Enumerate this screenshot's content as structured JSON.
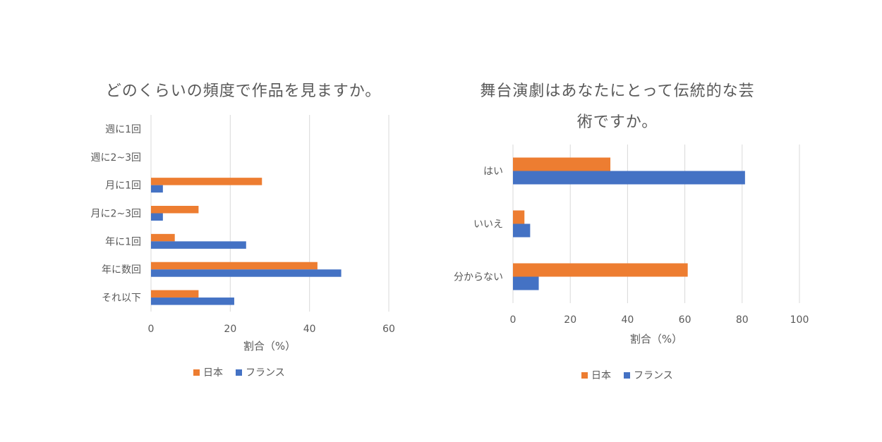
{
  "colors": {
    "japan": "#ED7D31",
    "france": "#4472C4",
    "grid": "#D9D9D9",
    "text": "#595959"
  },
  "chart_data": [
    {
      "type": "bar",
      "orientation": "horizontal",
      "title": "どのくらいの頻度で作品を見ますか。",
      "xlabel": "割合（%）",
      "xlim": [
        0,
        60
      ],
      "xticks": [
        0,
        20,
        40,
        60
      ],
      "categories": [
        "週に1回",
        "週に2~3回",
        "月に1回",
        "月に2~3回",
        "年に1回",
        "年に数回",
        "それ以下"
      ],
      "series": [
        {
          "name": "日本",
          "values": [
            0,
            0,
            28,
            12,
            6,
            42,
            12
          ]
        },
        {
          "name": "フランス",
          "values": [
            0,
            0,
            3,
            3,
            24,
            48,
            21
          ]
        }
      ],
      "grid": true,
      "legend": "bottom"
    },
    {
      "type": "bar",
      "orientation": "horizontal",
      "title": "舞台演劇はあなたにとって伝統的な芸術ですか。",
      "title_lines": [
        "舞台演劇はあなたにとって伝統的な芸",
        "術ですか。"
      ],
      "xlabel": "割合（%）",
      "xlim": [
        0,
        100
      ],
      "xticks": [
        0,
        20,
        40,
        60,
        80,
        100
      ],
      "categories": [
        "はい",
        "いいえ",
        "分からない"
      ],
      "series": [
        {
          "name": "日本",
          "values": [
            34,
            4,
            61
          ]
        },
        {
          "name": "フランス",
          "values": [
            81,
            6,
            9
          ]
        }
      ],
      "grid": true,
      "legend": "bottom"
    }
  ]
}
